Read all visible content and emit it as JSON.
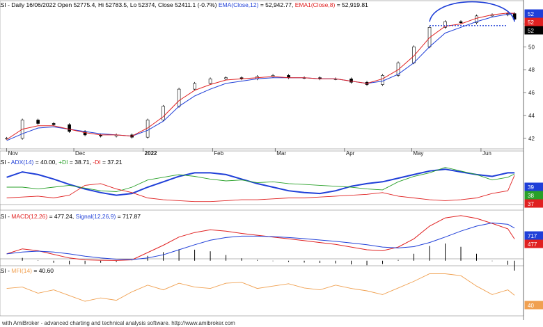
{
  "header": {
    "price": {
      "sym": "ASI",
      "info": " - Daily 16/06/2022 Open 52775.4, Hi 52783.5, Lo 52374, Close 52411.1 (-0.7%) ",
      "ema": "EMA(Close,12)",
      "ema_val": " = 52,942.77, ",
      "ema1": "EMA1(Close,8)",
      "ema1_val": " = 52,919.81"
    },
    "adx": {
      "sym": "ASI",
      "sep": " - ",
      "adx": "ADX(14)",
      "adx_val": " = 40.00, ",
      "pdi": "+DI",
      "pdi_val": " = 38.71, ",
      "mdi": "-DI",
      "mdi_val": " = 37.21"
    },
    "macd": {
      "sym": "ASI",
      "sep": " - ",
      "macd": "MACD(12,26)",
      "macd_val": " = 477.24, ",
      "sig": "Signal(12,26,9)",
      "sig_val": " = 717.87"
    },
    "mfi": {
      "sym": "ASI",
      "sep": " - ",
      "mfi": "MFI(14)",
      "mfi_val": " = 40.60"
    }
  },
  "x_labels": [
    "Nov",
    "Dec",
    "2022",
    "Feb",
    "Mar",
    "Apr",
    "May",
    "Jun"
  ],
  "price_axis": [
    "52",
    "50",
    "48",
    "46",
    "44",
    "42"
  ],
  "price_tags": [
    "52",
    "52",
    "52"
  ],
  "adx_tags": [
    "39",
    "38",
    "37"
  ],
  "macd_tags": [
    "717",
    "477"
  ],
  "mfi_tags": [
    "40"
  ],
  "footer": "with AmiBroker - advanced charting and technical analysis software. http://www.amibroker.com",
  "colors": {
    "ema12": "#1f3fd8",
    "ema8": "#e02020",
    "adx": "#1f3fd8",
    "pdi": "#28a028",
    "mdi": "#e02020",
    "macd": "#e02020",
    "signal": "#1f3fd8",
    "mfi": "#f0a050",
    "pattern": "#1f3fd8"
  },
  "chart_data": [
    {
      "type": "candlestick",
      "panel": "price",
      "unit": "thousand points",
      "ylim": [
        41.2,
        53.3
      ],
      "x": [
        "2021-11-01",
        "2021-11-08",
        "2021-11-15",
        "2021-11-22",
        "2021-11-29",
        "2021-12-06",
        "2021-12-13",
        "2021-12-20",
        "2021-12-27",
        "2022-01-03",
        "2022-01-10",
        "2022-01-17",
        "2022-01-24",
        "2022-01-31",
        "2022-02-07",
        "2022-02-14",
        "2022-02-21",
        "2022-02-28",
        "2022-03-07",
        "2022-03-14",
        "2022-03-21",
        "2022-03-28",
        "2022-04-04",
        "2022-04-11",
        "2022-04-18",
        "2022-04-25",
        "2022-05-02",
        "2022-05-09",
        "2022-05-16",
        "2022-05-23",
        "2022-05-30",
        "2022-06-06",
        "2022-06-13",
        "2022-06-16"
      ],
      "close": [
        42.0,
        43.6,
        43.3,
        43.2,
        42.6,
        42.3,
        42.2,
        42.3,
        42.1,
        43.6,
        44.8,
        46.3,
        46.8,
        47.2,
        47.3,
        47.2,
        47.4,
        47.5,
        47.3,
        47.3,
        47.2,
        47.2,
        46.9,
        46.7,
        47.5,
        48.6,
        50.0,
        51.7,
        52.2,
        52.1,
        52.7,
        52.8,
        52.9,
        52.41
      ],
      "ema12": [
        41.8,
        42.4,
        42.9,
        43.0,
        42.8,
        42.6,
        42.4,
        42.3,
        42.2,
        42.7,
        43.5,
        44.8,
        45.7,
        46.3,
        46.8,
        47.0,
        47.2,
        47.3,
        47.3,
        47.3,
        47.2,
        47.2,
        47.0,
        46.8,
        47.0,
        47.6,
        48.6,
        50.0,
        51.2,
        51.7,
        52.2,
        52.6,
        52.85,
        52.94
      ],
      "ema8": [
        41.9,
        42.8,
        43.1,
        43.1,
        42.8,
        42.5,
        42.3,
        42.3,
        42.2,
        42.9,
        43.9,
        45.3,
        46.2,
        46.7,
        47.1,
        47.2,
        47.3,
        47.4,
        47.3,
        47.3,
        47.2,
        47.2,
        47.0,
        46.8,
        47.2,
        48.0,
        49.2,
        50.8,
        51.8,
        52.0,
        52.5,
        52.8,
        52.95,
        52.92
      ],
      "annotations": {
        "neckline": 51.85,
        "arc": [
          "2022-05-09",
          "2022-06-16"
        ]
      }
    },
    {
      "type": "line",
      "panel": "adx",
      "ylim": [
        0,
        55
      ],
      "series": [
        {
          "name": "ADX(14)",
          "values": [
            35,
            41,
            38,
            33,
            27,
            22,
            18,
            15,
            17,
            24,
            30,
            36,
            40,
            40,
            38,
            33,
            28,
            24,
            20,
            18,
            17,
            20,
            25,
            28,
            30,
            34,
            38,
            42,
            44,
            41,
            38,
            36,
            40,
            40
          ]
        },
        {
          "name": "+DI",
          "values": [
            24,
            24,
            22,
            24,
            26,
            23,
            20,
            19,
            24,
            32,
            35,
            38,
            36,
            33,
            31,
            32,
            29,
            30,
            28,
            27,
            26,
            25,
            24,
            22,
            21,
            30,
            36,
            40,
            46,
            42,
            38,
            32,
            35,
            38.71
          ]
        },
        {
          "name": "-DI",
          "values": [
            12,
            13,
            14,
            12,
            15,
            26,
            28,
            22,
            18,
            12,
            10,
            9,
            8,
            8,
            9,
            10,
            10,
            11,
            12,
            12,
            13,
            14,
            15,
            16,
            18,
            14,
            12,
            10,
            9,
            10,
            12,
            17,
            20,
            37.21
          ]
        }
      ]
    },
    {
      "type": "line",
      "panel": "macd",
      "ylim": [
        -80,
        1050
      ],
      "series": [
        {
          "name": "MACD(12,26)",
          "values": [
            150,
            260,
            220,
            140,
            60,
            20,
            10,
            5,
            20,
            180,
            340,
            520,
            620,
            680,
            650,
            600,
            560,
            520,
            480,
            440,
            400,
            360,
            300,
            240,
            220,
            300,
            480,
            760,
            940,
            990,
            930,
            820,
            700,
            477.24
          ]
        },
        {
          "name": "Signal(12,26,9)",
          "values": [
            150,
            190,
            210,
            190,
            150,
            100,
            60,
            35,
            25,
            60,
            130,
            240,
            350,
            450,
            510,
            540,
            540,
            530,
            510,
            485,
            455,
            425,
            390,
            350,
            300,
            280,
            310,
            400,
            520,
            650,
            760,
            830,
            800,
            717.87
          ]
        }
      ]
    },
    {
      "type": "line",
      "panel": "mfi",
      "ylim": [
        0,
        100
      ],
      "series": [
        {
          "name": "MFI(14)",
          "values": [
            55,
            58,
            45,
            52,
            40,
            28,
            35,
            30,
            48,
            62,
            52,
            66,
            58,
            55,
            66,
            68,
            55,
            60,
            65,
            56,
            52,
            62,
            55,
            50,
            42,
            56,
            70,
            86,
            86,
            82,
            60,
            42,
            52,
            40.6
          ]
        }
      ]
    }
  ]
}
